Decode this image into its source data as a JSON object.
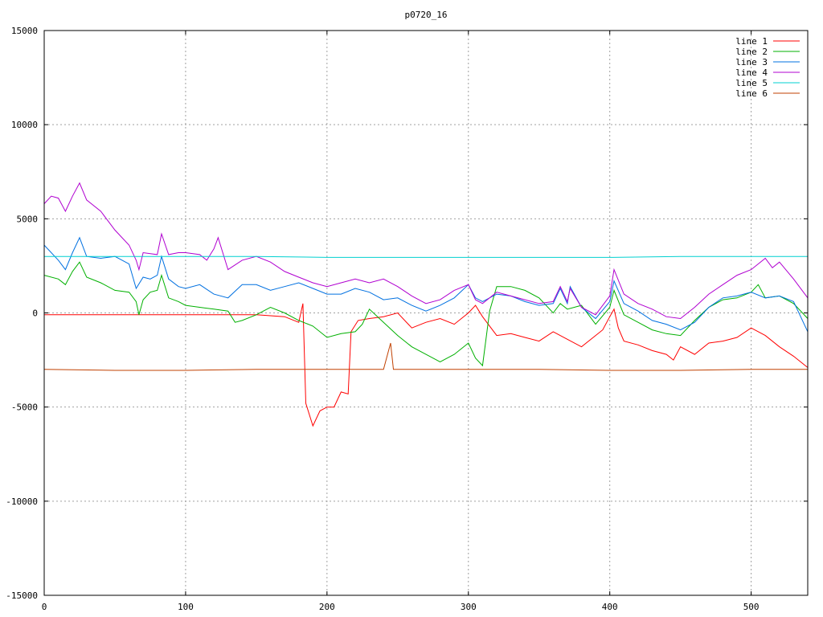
{
  "chart_data": {
    "type": "line",
    "title": "p0720_16",
    "xlabel": "",
    "ylabel": "",
    "xlim": [
      0,
      540
    ],
    "ylim": [
      -15000,
      15000
    ],
    "x_ticks": [
      0,
      100,
      200,
      300,
      400,
      500
    ],
    "y_ticks": [
      -15000,
      -10000,
      -5000,
      0,
      5000,
      10000,
      15000
    ],
    "grid": true,
    "legend_position": "top-right",
    "series": [
      {
        "name": "line 1",
        "color": "#ff0000",
        "points": [
          [
            0,
            -100
          ],
          [
            100,
            -100
          ],
          [
            150,
            -100
          ],
          [
            170,
            -200
          ],
          [
            180,
            -500
          ],
          [
            183,
            500
          ],
          [
            185,
            -4800
          ],
          [
            190,
            -6000
          ],
          [
            195,
            -5200
          ],
          [
            200,
            -5000
          ],
          [
            205,
            -5000
          ],
          [
            210,
            -4200
          ],
          [
            215,
            -4300
          ],
          [
            217,
            -1000
          ],
          [
            222,
            -400
          ],
          [
            230,
            -300
          ],
          [
            240,
            -200
          ],
          [
            250,
            0
          ],
          [
            260,
            -800
          ],
          [
            270,
            -500
          ],
          [
            280,
            -300
          ],
          [
            290,
            -600
          ],
          [
            300,
            0
          ],
          [
            305,
            400
          ],
          [
            310,
            -200
          ],
          [
            320,
            -1200
          ],
          [
            330,
            -1100
          ],
          [
            340,
            -1300
          ],
          [
            350,
            -1500
          ],
          [
            360,
            -1000
          ],
          [
            370,
            -1400
          ],
          [
            380,
            -1800
          ],
          [
            390,
            -1200
          ],
          [
            395,
            -900
          ],
          [
            400,
            -200
          ],
          [
            403,
            200
          ],
          [
            406,
            -800
          ],
          [
            410,
            -1500
          ],
          [
            420,
            -1700
          ],
          [
            430,
            -2000
          ],
          [
            440,
            -2200
          ],
          [
            445,
            -2500
          ],
          [
            450,
            -1800
          ],
          [
            460,
            -2200
          ],
          [
            470,
            -1600
          ],
          [
            480,
            -1500
          ],
          [
            490,
            -1300
          ],
          [
            500,
            -800
          ],
          [
            510,
            -1200
          ],
          [
            520,
            -1800
          ],
          [
            530,
            -2300
          ],
          [
            540,
            -2900
          ]
        ]
      },
      {
        "name": "line 2",
        "color": "#00b000",
        "points": [
          [
            0,
            2000
          ],
          [
            10,
            1800
          ],
          [
            15,
            1500
          ],
          [
            20,
            2200
          ],
          [
            25,
            2700
          ],
          [
            30,
            1900
          ],
          [
            40,
            1600
          ],
          [
            50,
            1200
          ],
          [
            60,
            1100
          ],
          [
            65,
            600
          ],
          [
            67,
            -100
          ],
          [
            70,
            700
          ],
          [
            75,
            1100
          ],
          [
            80,
            1200
          ],
          [
            83,
            2000
          ],
          [
            88,
            800
          ],
          [
            95,
            600
          ],
          [
            100,
            400
          ],
          [
            110,
            300
          ],
          [
            120,
            200
          ],
          [
            130,
            100
          ],
          [
            135,
            -500
          ],
          [
            140,
            -400
          ],
          [
            150,
            -100
          ],
          [
            160,
            300
          ],
          [
            170,
            0
          ],
          [
            180,
            -400
          ],
          [
            190,
            -700
          ],
          [
            200,
            -1300
          ],
          [
            210,
            -1100
          ],
          [
            220,
            -1000
          ],
          [
            225,
            -600
          ],
          [
            230,
            200
          ],
          [
            240,
            -500
          ],
          [
            250,
            -1200
          ],
          [
            260,
            -1800
          ],
          [
            270,
            -2200
          ],
          [
            280,
            -2600
          ],
          [
            290,
            -2200
          ],
          [
            300,
            -1600
          ],
          [
            305,
            -2400
          ],
          [
            310,
            -2800
          ],
          [
            315,
            100
          ],
          [
            320,
            1400
          ],
          [
            330,
            1400
          ],
          [
            340,
            1200
          ],
          [
            350,
            800
          ],
          [
            360,
            0
          ],
          [
            365,
            500
          ],
          [
            370,
            200
          ],
          [
            380,
            400
          ],
          [
            390,
            -600
          ],
          [
            400,
            300
          ],
          [
            403,
            1200
          ],
          [
            410,
            -100
          ],
          [
            420,
            -500
          ],
          [
            430,
            -900
          ],
          [
            440,
            -1100
          ],
          [
            450,
            -1200
          ],
          [
            460,
            -400
          ],
          [
            470,
            300
          ],
          [
            480,
            700
          ],
          [
            490,
            800
          ],
          [
            500,
            1100
          ],
          [
            505,
            1500
          ],
          [
            510,
            800
          ],
          [
            520,
            900
          ],
          [
            530,
            500
          ],
          [
            540,
            -300
          ]
        ]
      },
      {
        "name": "line 3",
        "color": "#0070e0",
        "points": [
          [
            0,
            3600
          ],
          [
            10,
            2800
          ],
          [
            15,
            2300
          ],
          [
            20,
            3200
          ],
          [
            25,
            4000
          ],
          [
            30,
            3000
          ],
          [
            40,
            2900
          ],
          [
            50,
            3000
          ],
          [
            60,
            2600
          ],
          [
            65,
            1300
          ],
          [
            70,
            1900
          ],
          [
            75,
            1800
          ],
          [
            80,
            2000
          ],
          [
            83,
            3000
          ],
          [
            88,
            1800
          ],
          [
            95,
            1400
          ],
          [
            100,
            1300
          ],
          [
            110,
            1500
          ],
          [
            120,
            1000
          ],
          [
            130,
            800
          ],
          [
            140,
            1500
          ],
          [
            150,
            1500
          ],
          [
            160,
            1200
          ],
          [
            170,
            1400
          ],
          [
            180,
            1600
          ],
          [
            190,
            1300
          ],
          [
            200,
            1000
          ],
          [
            210,
            1000
          ],
          [
            220,
            1300
          ],
          [
            230,
            1100
          ],
          [
            240,
            700
          ],
          [
            250,
            800
          ],
          [
            260,
            400
          ],
          [
            270,
            100
          ],
          [
            280,
            400
          ],
          [
            290,
            800
          ],
          [
            300,
            1500
          ],
          [
            305,
            800
          ],
          [
            310,
            600
          ],
          [
            320,
            1000
          ],
          [
            330,
            900
          ],
          [
            340,
            600
          ],
          [
            350,
            400
          ],
          [
            360,
            500
          ],
          [
            365,
            1300
          ],
          [
            370,
            500
          ],
          [
            372,
            1400
          ],
          [
            380,
            300
          ],
          [
            390,
            -300
          ],
          [
            400,
            600
          ],
          [
            403,
            1700
          ],
          [
            410,
            500
          ],
          [
            420,
            100
          ],
          [
            430,
            -400
          ],
          [
            440,
            -600
          ],
          [
            450,
            -900
          ],
          [
            460,
            -500
          ],
          [
            470,
            300
          ],
          [
            480,
            800
          ],
          [
            490,
            900
          ],
          [
            500,
            1100
          ],
          [
            510,
            800
          ],
          [
            520,
            900
          ],
          [
            530,
            600
          ],
          [
            540,
            -1000
          ]
        ]
      },
      {
        "name": "line 4",
        "color": "#b000d0",
        "points": [
          [
            0,
            5800
          ],
          [
            5,
            6200
          ],
          [
            10,
            6100
          ],
          [
            15,
            5400
          ],
          [
            20,
            6200
          ],
          [
            25,
            6900
          ],
          [
            30,
            6000
          ],
          [
            40,
            5400
          ],
          [
            50,
            4400
          ],
          [
            60,
            3600
          ],
          [
            65,
            2800
          ],
          [
            67,
            2300
          ],
          [
            70,
            3200
          ],
          [
            80,
            3100
          ],
          [
            83,
            4200
          ],
          [
            88,
            3100
          ],
          [
            95,
            3200
          ],
          [
            100,
            3200
          ],
          [
            110,
            3100
          ],
          [
            115,
            2800
          ],
          [
            120,
            3400
          ],
          [
            123,
            4000
          ],
          [
            130,
            2300
          ],
          [
            140,
            2800
          ],
          [
            150,
            3000
          ],
          [
            160,
            2700
          ],
          [
            170,
            2200
          ],
          [
            180,
            1900
          ],
          [
            190,
            1600
          ],
          [
            200,
            1400
          ],
          [
            210,
            1600
          ],
          [
            220,
            1800
          ],
          [
            230,
            1600
          ],
          [
            240,
            1800
          ],
          [
            250,
            1400
          ],
          [
            260,
            900
          ],
          [
            270,
            500
          ],
          [
            280,
            700
          ],
          [
            290,
            1200
          ],
          [
            300,
            1500
          ],
          [
            305,
            700
          ],
          [
            310,
            500
          ],
          [
            320,
            1100
          ],
          [
            330,
            900
          ],
          [
            340,
            700
          ],
          [
            350,
            500
          ],
          [
            360,
            600
          ],
          [
            365,
            1400
          ],
          [
            370,
            600
          ],
          [
            372,
            1300
          ],
          [
            380,
            300
          ],
          [
            390,
            -100
          ],
          [
            400,
            900
          ],
          [
            403,
            2300
          ],
          [
            410,
            1000
          ],
          [
            420,
            500
          ],
          [
            430,
            200
          ],
          [
            440,
            -200
          ],
          [
            450,
            -300
          ],
          [
            460,
            300
          ],
          [
            470,
            1000
          ],
          [
            480,
            1500
          ],
          [
            490,
            2000
          ],
          [
            500,
            2300
          ],
          [
            510,
            2900
          ],
          [
            515,
            2400
          ],
          [
            520,
            2700
          ],
          [
            530,
            1800
          ],
          [
            540,
            800
          ]
        ]
      },
      {
        "name": "line 5",
        "color": "#00d0d0",
        "points": [
          [
            0,
            3000
          ],
          [
            50,
            3000
          ],
          [
            100,
            3000
          ],
          [
            150,
            3000
          ],
          [
            200,
            2950
          ],
          [
            250,
            2950
          ],
          [
            300,
            2950
          ],
          [
            350,
            2950
          ],
          [
            400,
            2950
          ],
          [
            450,
            3000
          ],
          [
            500,
            3000
          ],
          [
            540,
            3000
          ]
        ]
      },
      {
        "name": "line 6",
        "color": "#c04000",
        "points": [
          [
            0,
            -3000
          ],
          [
            50,
            -3050
          ],
          [
            100,
            -3050
          ],
          [
            150,
            -3000
          ],
          [
            200,
            -3000
          ],
          [
            240,
            -3000
          ],
          [
            245,
            -1600
          ],
          [
            247,
            -3000
          ],
          [
            300,
            -3000
          ],
          [
            350,
            -3000
          ],
          [
            400,
            -3050
          ],
          [
            450,
            -3050
          ],
          [
            500,
            -3000
          ],
          [
            540,
            -3000
          ]
        ]
      }
    ]
  }
}
